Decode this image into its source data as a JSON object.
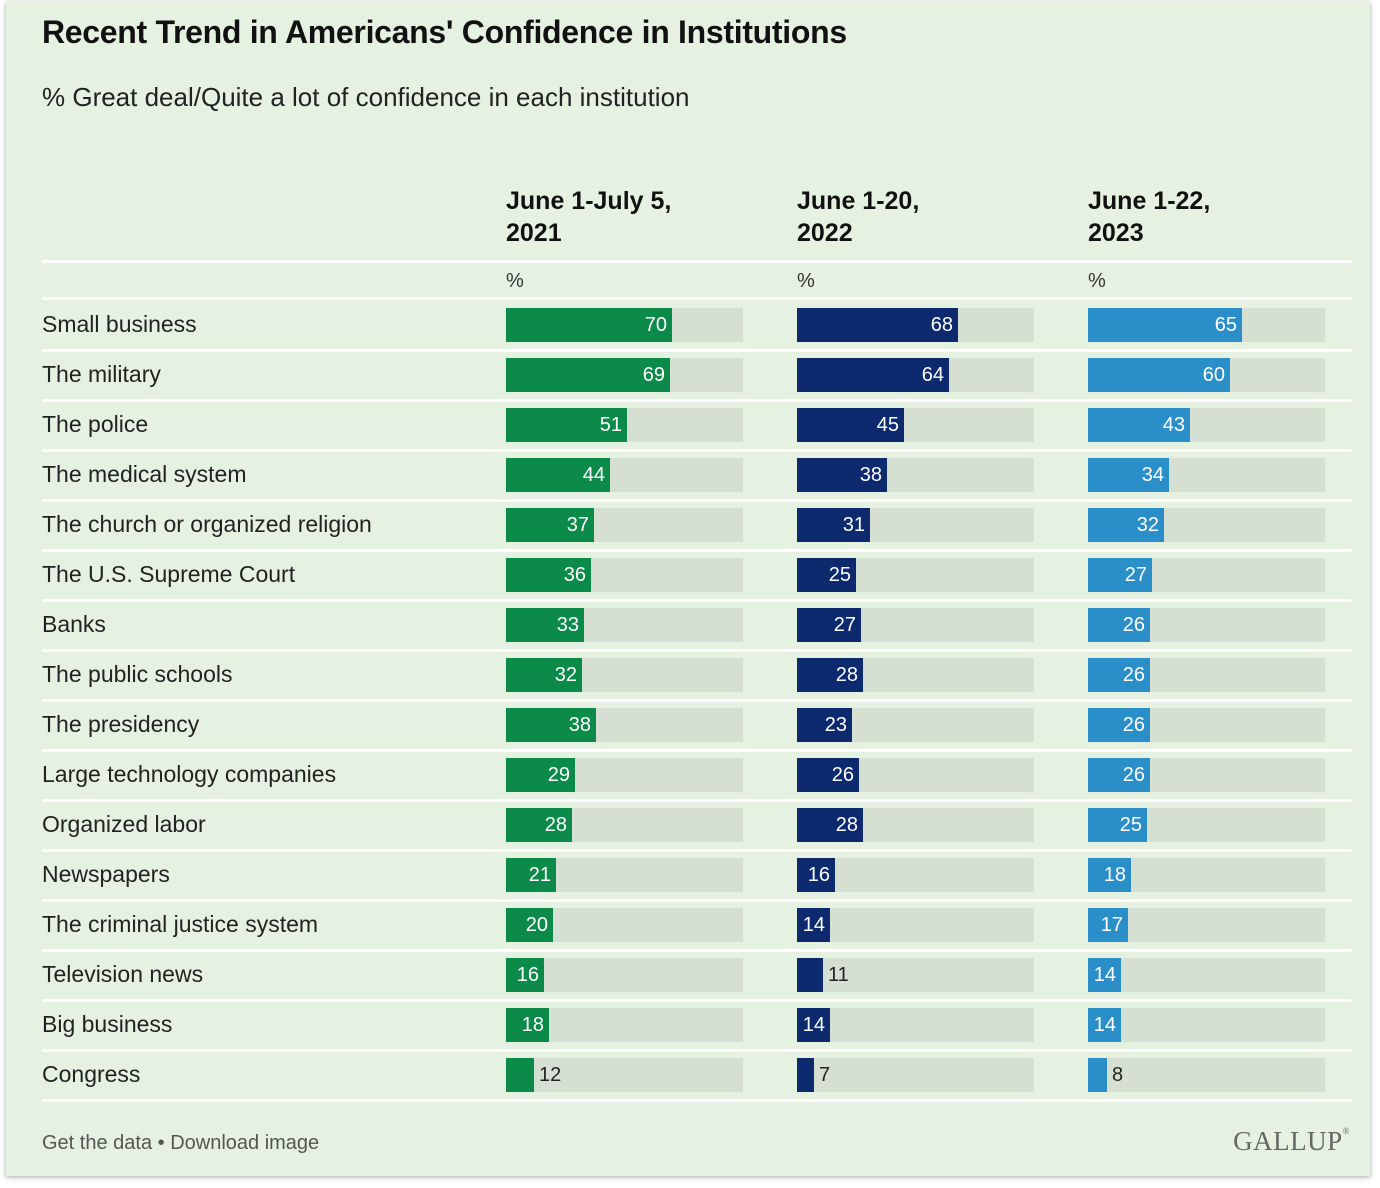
{
  "title": "Recent Trend in Americans' Confidence in Institutions",
  "subtitle": "% Great deal/Quite a lot of confidence in each institution",
  "footer": {
    "get_data": "Get the data",
    "separator": " • ",
    "download": "Download image",
    "logo": "GALLUP"
  },
  "colors": {
    "2021": "#0b8a4a",
    "2022": "#0d2a6e",
    "2023": "#2a8fc9",
    "track": "#d5e0d2",
    "background": "#e5f2e1"
  },
  "chart_data": {
    "type": "bar",
    "orientation": "horizontal",
    "xlim": [
      0,
      100
    ],
    "unit_label": "%",
    "categories": [
      "Small business",
      "The military",
      "The police",
      "The medical system",
      "The church or organized religion",
      "The U.S. Supreme Court",
      "Banks",
      "The public schools",
      "The presidency",
      "Large technology companies",
      "Organized labor",
      "Newspapers",
      "The criminal justice system",
      "Television news",
      "Big business",
      "Congress"
    ],
    "series": [
      {
        "name_line1": "June 1-July 5,",
        "name_line2": "2021",
        "values": [
          70,
          69,
          51,
          44,
          37,
          36,
          33,
          32,
          38,
          29,
          28,
          21,
          20,
          16,
          18,
          12
        ]
      },
      {
        "name_line1": "June 1-20,",
        "name_line2": "2022",
        "values": [
          68,
          64,
          45,
          38,
          31,
          25,
          27,
          28,
          23,
          26,
          28,
          16,
          14,
          11,
          14,
          7
        ]
      },
      {
        "name_line1": "June 1-22,",
        "name_line2": "2023",
        "values": [
          65,
          60,
          43,
          34,
          32,
          27,
          26,
          26,
          26,
          26,
          25,
          18,
          17,
          14,
          14,
          8
        ]
      }
    ]
  }
}
